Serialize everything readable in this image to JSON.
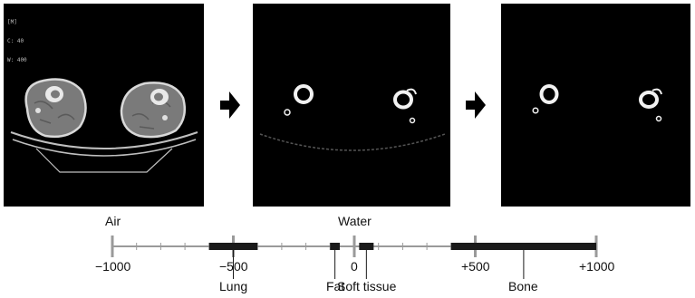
{
  "panels": [
    {
      "id": "original",
      "overlay_lines": [
        "[M]",
        "C: 40",
        "W: 400"
      ]
    },
    {
      "id": "bone-threshold"
    },
    {
      "id": "bone-only"
    }
  ],
  "arrows": [
    "right-arrow-icon",
    "right-arrow-icon"
  ],
  "scale": {
    "min": -1000,
    "max": 1000,
    "major_ticks": [
      -1000,
      -500,
      0,
      500,
      1000
    ],
    "tick_labels": [
      "−1000",
      "−500",
      "0",
      "+500",
      "+1000"
    ],
    "top_labels": [
      {
        "text": "Air",
        "value": -1000
      },
      {
        "text": "Water",
        "value": 0
      }
    ],
    "ranges": [
      {
        "name": "Lung",
        "from": -600,
        "to": -400
      },
      {
        "name": "Fat",
        "from": -100,
        "to": -60
      },
      {
        "name": "Soft tissue",
        "from": 20,
        "to": 80
      },
      {
        "name": "Bone",
        "from": 400,
        "to": 1000
      }
    ],
    "colors": {
      "axis": "#9a9a9a",
      "bar": "#1a1a1a"
    }
  }
}
